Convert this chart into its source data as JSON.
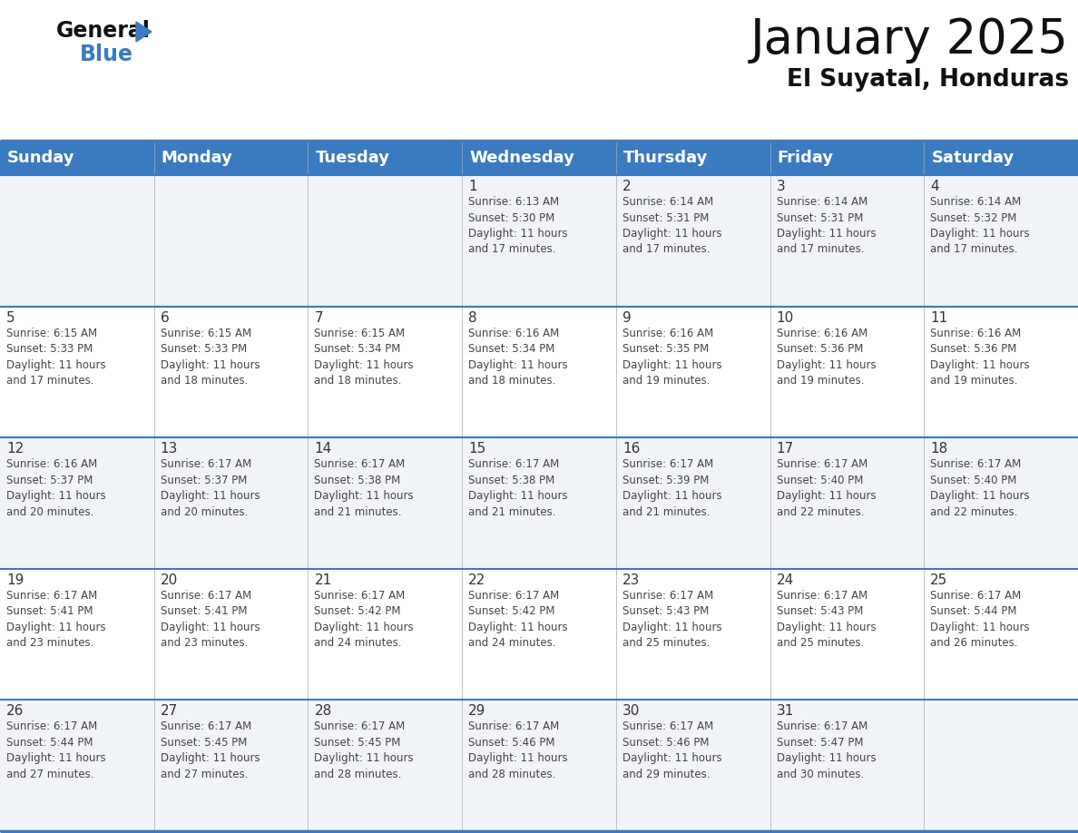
{
  "title": "January 2025",
  "subtitle": "El Suyatal, Honduras",
  "header_color": "#3a7abf",
  "header_text_color": "#ffffff",
  "cell_bg_light": "#f0f4f8",
  "cell_bg_white": "#ffffff",
  "text_color": "#333333",
  "day_number_color": "#333333",
  "border_color": "#3a7abf",
  "days_of_week": [
    "Sunday",
    "Monday",
    "Tuesday",
    "Wednesday",
    "Thursday",
    "Friday",
    "Saturday"
  ],
  "calendar_data": [
    [
      "",
      "",
      "",
      "1\nSunrise: 6:13 AM\nSunset: 5:30 PM\nDaylight: 11 hours\nand 17 minutes.",
      "2\nSunrise: 6:14 AM\nSunset: 5:31 PM\nDaylight: 11 hours\nand 17 minutes.",
      "3\nSunrise: 6:14 AM\nSunset: 5:31 PM\nDaylight: 11 hours\nand 17 minutes.",
      "4\nSunrise: 6:14 AM\nSunset: 5:32 PM\nDaylight: 11 hours\nand 17 minutes."
    ],
    [
      "5\nSunrise: 6:15 AM\nSunset: 5:33 PM\nDaylight: 11 hours\nand 17 minutes.",
      "6\nSunrise: 6:15 AM\nSunset: 5:33 PM\nDaylight: 11 hours\nand 18 minutes.",
      "7\nSunrise: 6:15 AM\nSunset: 5:34 PM\nDaylight: 11 hours\nand 18 minutes.",
      "8\nSunrise: 6:16 AM\nSunset: 5:34 PM\nDaylight: 11 hours\nand 18 minutes.",
      "9\nSunrise: 6:16 AM\nSunset: 5:35 PM\nDaylight: 11 hours\nand 19 minutes.",
      "10\nSunrise: 6:16 AM\nSunset: 5:36 PM\nDaylight: 11 hours\nand 19 minutes.",
      "11\nSunrise: 6:16 AM\nSunset: 5:36 PM\nDaylight: 11 hours\nand 19 minutes."
    ],
    [
      "12\nSunrise: 6:16 AM\nSunset: 5:37 PM\nDaylight: 11 hours\nand 20 minutes.",
      "13\nSunrise: 6:17 AM\nSunset: 5:37 PM\nDaylight: 11 hours\nand 20 minutes.",
      "14\nSunrise: 6:17 AM\nSunset: 5:38 PM\nDaylight: 11 hours\nand 21 minutes.",
      "15\nSunrise: 6:17 AM\nSunset: 5:38 PM\nDaylight: 11 hours\nand 21 minutes.",
      "16\nSunrise: 6:17 AM\nSunset: 5:39 PM\nDaylight: 11 hours\nand 21 minutes.",
      "17\nSunrise: 6:17 AM\nSunset: 5:40 PM\nDaylight: 11 hours\nand 22 minutes.",
      "18\nSunrise: 6:17 AM\nSunset: 5:40 PM\nDaylight: 11 hours\nand 22 minutes."
    ],
    [
      "19\nSunrise: 6:17 AM\nSunset: 5:41 PM\nDaylight: 11 hours\nand 23 minutes.",
      "20\nSunrise: 6:17 AM\nSunset: 5:41 PM\nDaylight: 11 hours\nand 23 minutes.",
      "21\nSunrise: 6:17 AM\nSunset: 5:42 PM\nDaylight: 11 hours\nand 24 minutes.",
      "22\nSunrise: 6:17 AM\nSunset: 5:42 PM\nDaylight: 11 hours\nand 24 minutes.",
      "23\nSunrise: 6:17 AM\nSunset: 5:43 PM\nDaylight: 11 hours\nand 25 minutes.",
      "24\nSunrise: 6:17 AM\nSunset: 5:43 PM\nDaylight: 11 hours\nand 25 minutes.",
      "25\nSunrise: 6:17 AM\nSunset: 5:44 PM\nDaylight: 11 hours\nand 26 minutes."
    ],
    [
      "26\nSunrise: 6:17 AM\nSunset: 5:44 PM\nDaylight: 11 hours\nand 27 minutes.",
      "27\nSunrise: 6:17 AM\nSunset: 5:45 PM\nDaylight: 11 hours\nand 27 minutes.",
      "28\nSunrise: 6:17 AM\nSunset: 5:45 PM\nDaylight: 11 hours\nand 28 minutes.",
      "29\nSunrise: 6:17 AM\nSunset: 5:46 PM\nDaylight: 11 hours\nand 28 minutes.",
      "30\nSunrise: 6:17 AM\nSunset: 5:46 PM\nDaylight: 11 hours\nand 29 minutes.",
      "31\nSunrise: 6:17 AM\nSunset: 5:47 PM\nDaylight: 11 hours\nand 30 minutes.",
      ""
    ]
  ],
  "logo_triangle_color": "#3a7abf",
  "title_fontsize": 38,
  "subtitle_fontsize": 19,
  "header_fontsize": 13,
  "day_num_fontsize": 11,
  "cell_text_fontsize": 8.5
}
